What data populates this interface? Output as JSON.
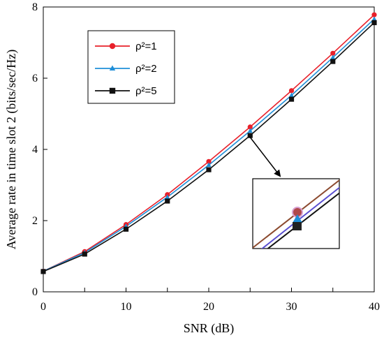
{
  "chart_data": {
    "type": "line",
    "title": "",
    "xlabel": "SNR (dB)",
    "ylabel": "Average  rate in time slot 2 (bits/sec/Hz)",
    "xlim": [
      0,
      40
    ],
    "ylim": [
      0,
      8
    ],
    "xticks": [
      0,
      10,
      20,
      30,
      40
    ],
    "yticks": [
      0,
      2,
      4,
      6,
      8
    ],
    "grid": false,
    "legend_position": "top-left",
    "x": [
      0,
      5,
      10,
      15,
      20,
      25,
      30,
      35,
      40
    ],
    "series": [
      {
        "name": "ρ²=1",
        "color": "#e8202a",
        "marker": "circle",
        "values": [
          0.58,
          1.13,
          1.89,
          2.73,
          3.66,
          4.63,
          5.65,
          6.7,
          7.78
        ]
      },
      {
        "name": "ρ²=2",
        "color": "#1f8fd8",
        "marker": "triangle",
        "values": [
          0.58,
          1.1,
          1.84,
          2.66,
          3.56,
          4.52,
          5.52,
          6.58,
          7.66
        ]
      },
      {
        "name": "ρ²=5",
        "color": "#111111",
        "marker": "square",
        "values": [
          0.57,
          1.06,
          1.76,
          2.55,
          3.43,
          4.39,
          5.41,
          6.47,
          7.56
        ]
      }
    ]
  }
}
